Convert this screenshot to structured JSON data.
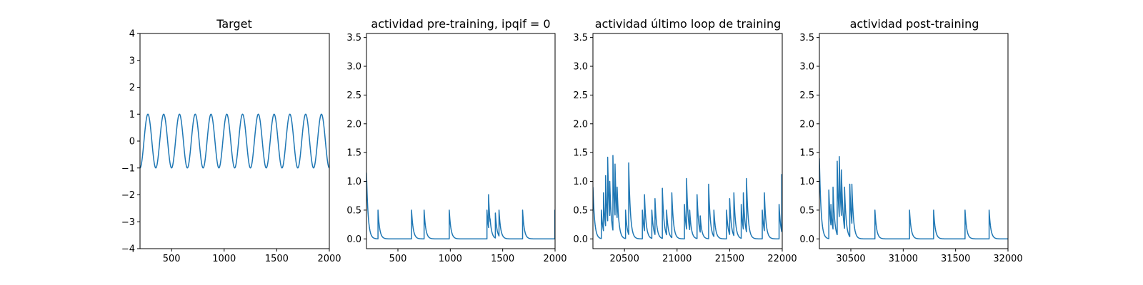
{
  "figure": {
    "background": "#ffffff",
    "line_color": "#1f77b4"
  },
  "chart_data": [
    {
      "type": "line",
      "title": "Target",
      "xlim": [
        200,
        2000
      ],
      "ylim": [
        -4,
        4
      ],
      "xticks": [
        500,
        1000,
        1500,
        2000
      ],
      "yticks": [
        -4,
        -3,
        -2,
        -1,
        0,
        1,
        2,
        3,
        4
      ],
      "ytick_labels": [
        "−4",
        "−3",
        "−2",
        "−1",
        "0",
        "1",
        "2",
        "3",
        "4"
      ],
      "grid": false,
      "signal": {
        "kind": "sine",
        "amplitude": 1,
        "period": 150,
        "value_at_x_start": -1,
        "x_start": 200,
        "x_end": 2000
      }
    },
    {
      "type": "line",
      "title": "actividad pre-training, ipqif = 0",
      "xlim": [
        200,
        2000
      ],
      "ylim": [
        -0.17,
        3.57
      ],
      "xticks": [
        500,
        1000,
        1500,
        2000
      ],
      "yticks": [
        0.0,
        0.5,
        1.0,
        1.5,
        2.0,
        2.5,
        3.0,
        3.5
      ],
      "ytick_labels": [
        "0.0",
        "0.5",
        "1.0",
        "1.5",
        "2.0",
        "2.5",
        "3.0",
        "3.5"
      ],
      "grid": false,
      "events": [
        {
          "x": 200,
          "y": 1.15
        },
        {
          "x": 310,
          "y": 0.5
        },
        {
          "x": 630,
          "y": 0.5
        },
        {
          "x": 750,
          "y": 0.5
        },
        {
          "x": 990,
          "y": 0.5
        },
        {
          "x": 1350,
          "y": 0.5
        },
        {
          "x": 1365,
          "y": 0.77
        },
        {
          "x": 1380,
          "y": 0.35
        },
        {
          "x": 1430,
          "y": 0.45
        },
        {
          "x": 1465,
          "y": 0.5
        },
        {
          "x": 1690,
          "y": 0.5
        },
        {
          "x": 1998,
          "y": 0.5
        }
      ]
    },
    {
      "type": "line",
      "title": "actividad último loop de training",
      "xlim": [
        20200,
        22000
      ],
      "ylim": [
        -0.17,
        3.57
      ],
      "xticks": [
        20500,
        21000,
        21500,
        22000
      ],
      "yticks": [
        0.0,
        0.5,
        1.0,
        1.5,
        2.0,
        2.5,
        3.0,
        3.5
      ],
      "ytick_labels": [
        "0.0",
        "0.5",
        "1.0",
        "1.5",
        "2.0",
        "2.5",
        "3.0",
        "3.5"
      ],
      "grid": false,
      "events": [
        {
          "x": 20200,
          "y": 0.9
        },
        {
          "x": 20280,
          "y": 0.5
        },
        {
          "x": 20300,
          "y": 0.8
        },
        {
          "x": 20320,
          "y": 1.1
        },
        {
          "x": 20340,
          "y": 1.42
        },
        {
          "x": 20360,
          "y": 1.0
        },
        {
          "x": 20390,
          "y": 1.45
        },
        {
          "x": 20410,
          "y": 1.3
        },
        {
          "x": 20430,
          "y": 0.9
        },
        {
          "x": 20510,
          "y": 0.5
        },
        {
          "x": 20540,
          "y": 1.32
        },
        {
          "x": 20670,
          "y": 0.5
        },
        {
          "x": 20690,
          "y": 0.77
        },
        {
          "x": 20760,
          "y": 0.5
        },
        {
          "x": 20790,
          "y": 0.7
        },
        {
          "x": 20860,
          "y": 0.88
        },
        {
          "x": 20900,
          "y": 0.5
        },
        {
          "x": 20950,
          "y": 0.8
        },
        {
          "x": 21070,
          "y": 0.6
        },
        {
          "x": 21090,
          "y": 1.05
        },
        {
          "x": 21120,
          "y": 0.5
        },
        {
          "x": 21190,
          "y": 0.77
        },
        {
          "x": 21220,
          "y": 0.4
        },
        {
          "x": 21300,
          "y": 0.95
        },
        {
          "x": 21350,
          "y": 0.5
        },
        {
          "x": 21470,
          "y": 0.5
        },
        {
          "x": 21500,
          "y": 0.7
        },
        {
          "x": 21540,
          "y": 0.8
        },
        {
          "x": 21610,
          "y": 0.6
        },
        {
          "x": 21630,
          "y": 0.8
        },
        {
          "x": 21660,
          "y": 1.05
        },
        {
          "x": 21810,
          "y": 0.5
        },
        {
          "x": 21830,
          "y": 0.8
        },
        {
          "x": 21970,
          "y": 0.6
        },
        {
          "x": 21995,
          "y": 1.12
        }
      ]
    },
    {
      "type": "line",
      "title": "actividad post-training",
      "xlim": [
        30200,
        32000
      ],
      "ylim": [
        -0.17,
        3.57
      ],
      "xticks": [
        30500,
        31000,
        31500,
        32000
      ],
      "yticks": [
        0.0,
        0.5,
        1.0,
        1.5,
        2.0,
        2.5,
        3.0,
        3.5
      ],
      "ytick_labels": [
        "0.0",
        "0.5",
        "1.0",
        "1.5",
        "2.0",
        "2.5",
        "3.0",
        "3.5"
      ],
      "grid": false,
      "events": [
        {
          "x": 30200,
          "y": 1.4
        },
        {
          "x": 30290,
          "y": 0.85
        },
        {
          "x": 30310,
          "y": 0.6
        },
        {
          "x": 30330,
          "y": 0.9
        },
        {
          "x": 30370,
          "y": 1.35
        },
        {
          "x": 30390,
          "y": 1.43
        },
        {
          "x": 30410,
          "y": 1.2
        },
        {
          "x": 30440,
          "y": 0.9
        },
        {
          "x": 30490,
          "y": 0.95
        },
        {
          "x": 30510,
          "y": 0.95
        },
        {
          "x": 30730,
          "y": 0.5
        },
        {
          "x": 31060,
          "y": 0.5
        },
        {
          "x": 31290,
          "y": 0.5
        },
        {
          "x": 31590,
          "y": 0.5
        },
        {
          "x": 31820,
          "y": 0.5
        }
      ]
    }
  ]
}
